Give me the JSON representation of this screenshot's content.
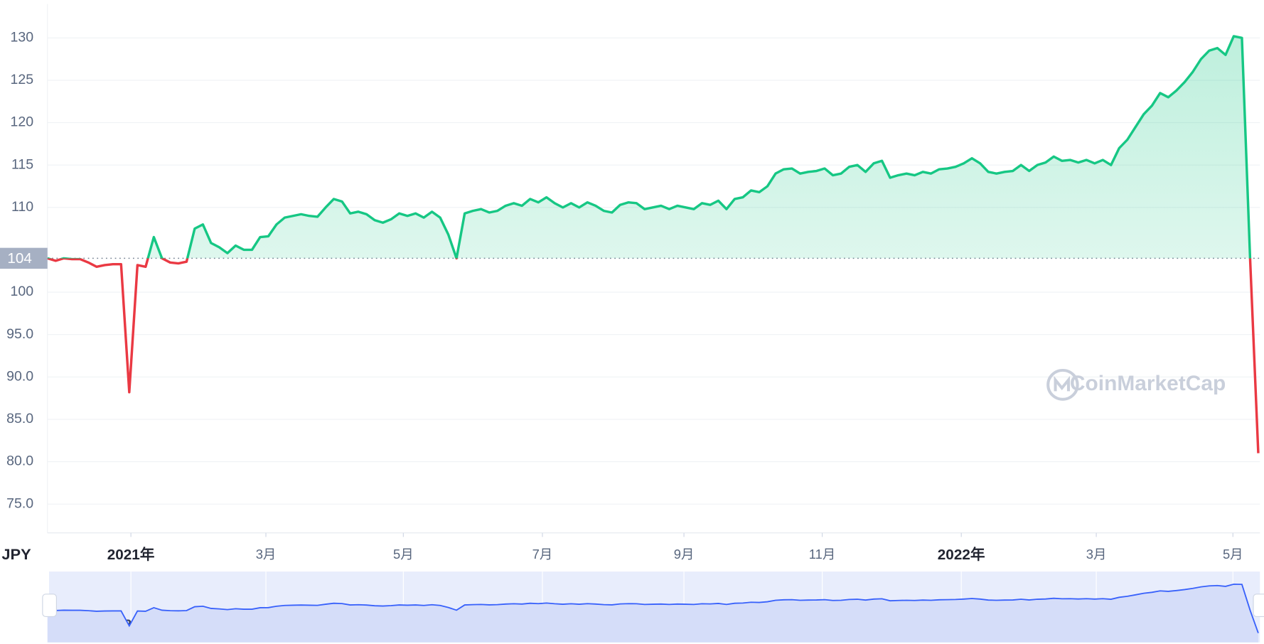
{
  "chart_data": {
    "type": "line",
    "currency": "JPY",
    "watermark": "CoinMarketCap",
    "baseline": 104,
    "series": [
      {
        "name": "JPY",
        "color_up": "#16c784",
        "color_down": "#ea3943",
        "values": [
          104.0,
          103.7,
          104.0,
          103.9,
          103.9,
          103.5,
          103.0,
          103.2,
          103.3,
          103.3,
          88.2,
          103.2,
          103.0,
          106.5,
          104.0,
          103.5,
          103.4,
          103.6,
          107.5,
          108.0,
          105.8,
          105.3,
          104.6,
          105.5,
          105.0,
          105.0,
          106.5,
          106.6,
          108.0,
          108.8,
          109.0,
          109.2,
          109.0,
          108.9,
          110.0,
          111.0,
          110.7,
          109.3,
          109.5,
          109.2,
          108.5,
          108.2,
          108.6,
          109.3,
          109.0,
          109.3,
          108.8,
          109.5,
          108.8,
          106.8,
          104.0,
          109.3,
          109.6,
          109.8,
          109.4,
          109.6,
          110.2,
          110.5,
          110.2,
          111.0,
          110.6,
          111.2,
          110.5,
          110.0,
          110.5,
          110.0,
          110.6,
          110.2,
          109.6,
          109.4,
          110.3,
          110.6,
          110.5,
          109.8,
          110.0,
          110.2,
          109.8,
          110.2,
          110.0,
          109.8,
          110.5,
          110.3,
          110.8,
          109.8,
          111.0,
          111.2,
          112.0,
          111.8,
          112.5,
          114.0,
          114.5,
          114.6,
          114.0,
          114.2,
          114.3,
          114.6,
          113.8,
          114.0,
          114.8,
          115.0,
          114.2,
          115.2,
          115.5,
          113.5,
          113.8,
          114.0,
          113.8,
          114.2,
          114.0,
          114.5,
          114.6,
          114.8,
          115.2,
          115.8,
          115.2,
          114.2,
          114.0,
          114.2,
          114.3,
          115.0,
          114.3,
          115.0,
          115.3,
          116.0,
          115.5,
          115.6,
          115.3,
          115.6,
          115.2,
          115.6,
          115.0,
          117.0,
          118.0,
          119.5,
          121.0,
          122.0,
          123.5,
          123.0,
          123.8,
          124.8,
          126.0,
          127.5,
          128.5,
          128.8,
          128.0,
          130.2,
          130.0,
          104.0,
          81.0
        ]
      }
    ],
    "xlim": [
      0,
      148.2
    ],
    "xticks": [
      {
        "value": 10.2,
        "label": "2021年"
      },
      {
        "value": 26.7,
        "label": "3月"
      },
      {
        "value": 43.5,
        "label": "5月"
      },
      {
        "value": 60.5,
        "label": "7月"
      },
      {
        "value": 77.8,
        "label": "9月"
      },
      {
        "value": 94.7,
        "label": "11月"
      },
      {
        "value": 111.7,
        "label": "2022年"
      },
      {
        "value": 128.2,
        "label": "3月"
      },
      {
        "value": 144.9,
        "label": "5月"
      }
    ],
    "ylim": [
      71.6,
      134
    ],
    "yticks": [
      {
        "value": 75,
        "label": "75.0"
      },
      {
        "value": 80,
        "label": "80.0"
      },
      {
        "value": 85,
        "label": "85.0"
      },
      {
        "value": 90,
        "label": "90.0"
      },
      {
        "value": 95,
        "label": "95.0"
      },
      100,
      110,
      115,
      120,
      125,
      130
    ],
    "grid": true
  }
}
